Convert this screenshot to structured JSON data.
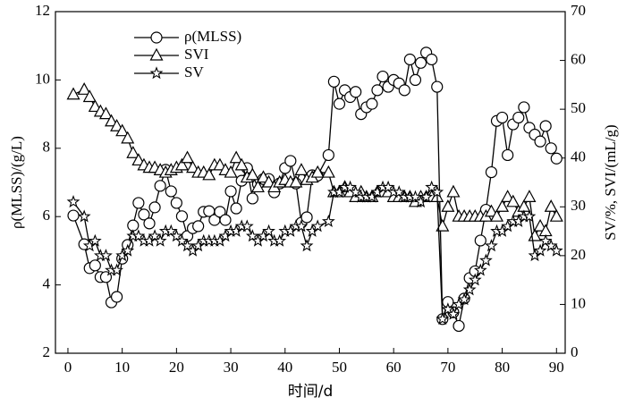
{
  "chart_data": {
    "type": "line",
    "x_label": "时间/d",
    "y_label": "ρ(MLSS)/(g/L)",
    "y2_label": "SV/%, SVI/(mL/g)",
    "x": [
      1,
      3,
      4,
      5,
      6,
      7,
      8,
      9,
      10,
      11,
      12,
      13,
      14,
      15,
      16,
      17,
      18,
      19,
      20,
      21,
      22,
      23,
      24,
      25,
      26,
      27,
      28,
      29,
      30,
      31,
      32,
      33,
      34,
      35,
      36,
      37,
      38,
      39,
      40,
      41,
      42,
      43,
      44,
      45,
      46,
      48,
      49,
      50,
      51,
      52,
      53,
      54,
      55,
      56,
      57,
      58,
      59,
      60,
      61,
      62,
      63,
      64,
      65,
      66,
      67,
      68,
      69,
      70,
      71,
      72,
      73,
      74,
      75,
      76,
      77,
      78,
      79,
      80,
      81,
      82,
      83,
      84,
      85,
      86,
      87,
      88,
      89,
      90
    ],
    "series": [
      {
        "name": "ρ(MLSS)",
        "color": "#000000",
        "marker": "circle",
        "values": [
          6.03,
          5.19,
          4.49,
          4.57,
          4.23,
          4.23,
          3.49,
          3.65,
          4.77,
          5.17,
          5.74,
          6.4,
          6.06,
          5.8,
          6.27,
          6.9,
          7.37,
          6.74,
          6.4,
          6.01,
          5.43,
          5.66,
          5.72,
          6.14,
          6.16,
          5.9,
          6.14,
          5.9,
          6.74,
          6.24,
          7.05,
          7.42,
          6.53,
          6.95,
          7.1,
          7.1,
          6.71,
          6.97,
          7.42,
          7.63,
          6.97,
          5.82,
          5.98,
          7.21,
          7.2,
          7.8,
          9.95,
          9.3,
          9.7,
          9.5,
          9.65,
          9.0,
          9.2,
          9.3,
          9.7,
          10.1,
          9.8,
          10.0,
          9.9,
          9.7,
          10.6,
          10.0,
          10.5,
          10.8,
          10.6,
          9.8,
          3.0,
          3.5,
          3.2,
          2.8,
          3.6,
          4.2,
          4.4,
          5.3,
          6.2,
          7.3,
          8.8,
          8.9,
          7.8,
          8.7,
          8.9,
          9.2,
          8.6,
          8.4,
          8.2,
          8.65,
          8.0,
          7.7
        ]
      },
      {
        "name": "SVI",
        "color": "#000000",
        "marker": "triangle",
        "axis": "y2",
        "values": [
          53,
          54,
          52.5,
          50.5,
          49.5,
          49,
          47.5,
          46.5,
          45.5,
          44,
          41,
          39.5,
          38.5,
          38,
          38,
          37.5,
          37,
          37.5,
          38,
          38.5,
          40,
          38,
          37,
          37,
          36.5,
          38.5,
          38.5,
          37.5,
          37,
          40,
          38.5,
          36,
          36.5,
          34,
          36,
          35,
          34,
          35,
          35.5,
          35,
          35,
          37.5,
          35.5,
          36,
          37,
          37,
          33,
          33,
          34,
          33,
          32,
          33,
          32,
          32,
          33,
          33,
          33,
          32,
          32,
          32,
          32,
          31,
          32,
          32,
          32,
          32,
          26,
          30,
          33,
          28,
          28,
          28,
          28,
          28,
          28,
          29,
          28,
          30,
          32,
          31,
          29,
          30,
          32,
          24,
          26,
          25,
          30,
          28
        ]
      },
      {
        "name": "SV",
        "color": "#000000",
        "marker": "star",
        "axis": "y2",
        "values": [
          31,
          28,
          22,
          23,
          20,
          20,
          17,
          17,
          20,
          21,
          24,
          24,
          23,
          23,
          24,
          23,
          25,
          25,
          24,
          23,
          22,
          21,
          22,
          23,
          23,
          23,
          23,
          24,
          25,
          25,
          26,
          26,
          24,
          23,
          24,
          25,
          23,
          23,
          25,
          25,
          26,
          26,
          22,
          25,
          26,
          27,
          33,
          33,
          34,
          34,
          33,
          32,
          32,
          32,
          33,
          34,
          34,
          33,
          33,
          32,
          32,
          32,
          31,
          32,
          34,
          33,
          7,
          9,
          8,
          10,
          11,
          13,
          15,
          17,
          19,
          22,
          25,
          25,
          26,
          27,
          27,
          28,
          28,
          20,
          21,
          23,
          22,
          21
        ]
      }
    ],
    "xlim": [
      -2.3,
      91.6
    ],
    "xticks": [
      0,
      10,
      20,
      30,
      40,
      50,
      60,
      70,
      80,
      90
    ],
    "ylim": [
      2,
      12
    ],
    "yticks": [
      2,
      4,
      6,
      8,
      10,
      12
    ],
    "y2lim": [
      0,
      70
    ],
    "y2ticks": [
      0,
      10,
      20,
      30,
      40,
      50,
      60,
      70
    ],
    "legend": "upper left"
  }
}
